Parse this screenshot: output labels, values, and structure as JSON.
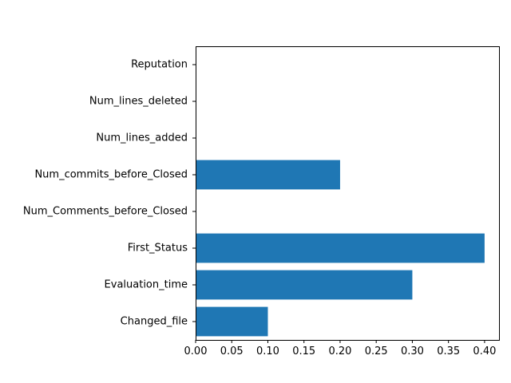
{
  "chart_data": {
    "type": "bar",
    "orientation": "horizontal",
    "title": "",
    "xlabel": "",
    "ylabel": "",
    "categories": [
      "Changed_file",
      "Evaluation_time",
      "First_Status",
      "Num_Comments_before_Closed",
      "Num_commits_before_Closed",
      "Num_lines_added",
      "Num_lines_deleted",
      "Reputation"
    ],
    "values": [
      0.1,
      0.3,
      0.4,
      0.0,
      0.2,
      0.0,
      0.0,
      0.0
    ],
    "xlim": [
      0.0,
      0.42
    ],
    "xticks": [
      0.0,
      0.05,
      0.1,
      0.15,
      0.2,
      0.25,
      0.3,
      0.35,
      0.4
    ],
    "xtick_labels": [
      "0.00",
      "0.05",
      "0.10",
      "0.15",
      "0.20",
      "0.25",
      "0.30",
      "0.35",
      "0.40"
    ],
    "grid": false,
    "legend": "none",
    "bar_color": "#1f77b4"
  }
}
